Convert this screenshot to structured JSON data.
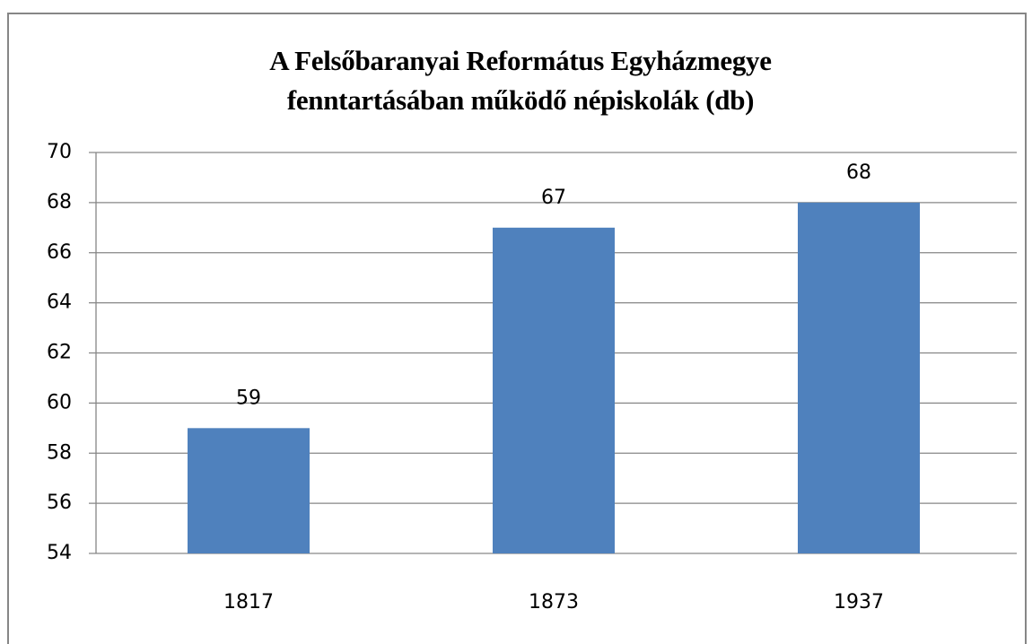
{
  "chart_data": {
    "type": "bar",
    "title": "A Felsőbaranyai Református Egyházmegye fenntartásában működő népiskolák (db)",
    "categories": [
      "1817",
      "1873",
      "1937"
    ],
    "values": [
      59,
      67,
      68
    ],
    "color": "#4f81bd",
    "ylim": [
      54,
      70
    ],
    "yticks": [
      54,
      56,
      58,
      60,
      62,
      64,
      66,
      68,
      70
    ],
    "grid": true
  }
}
